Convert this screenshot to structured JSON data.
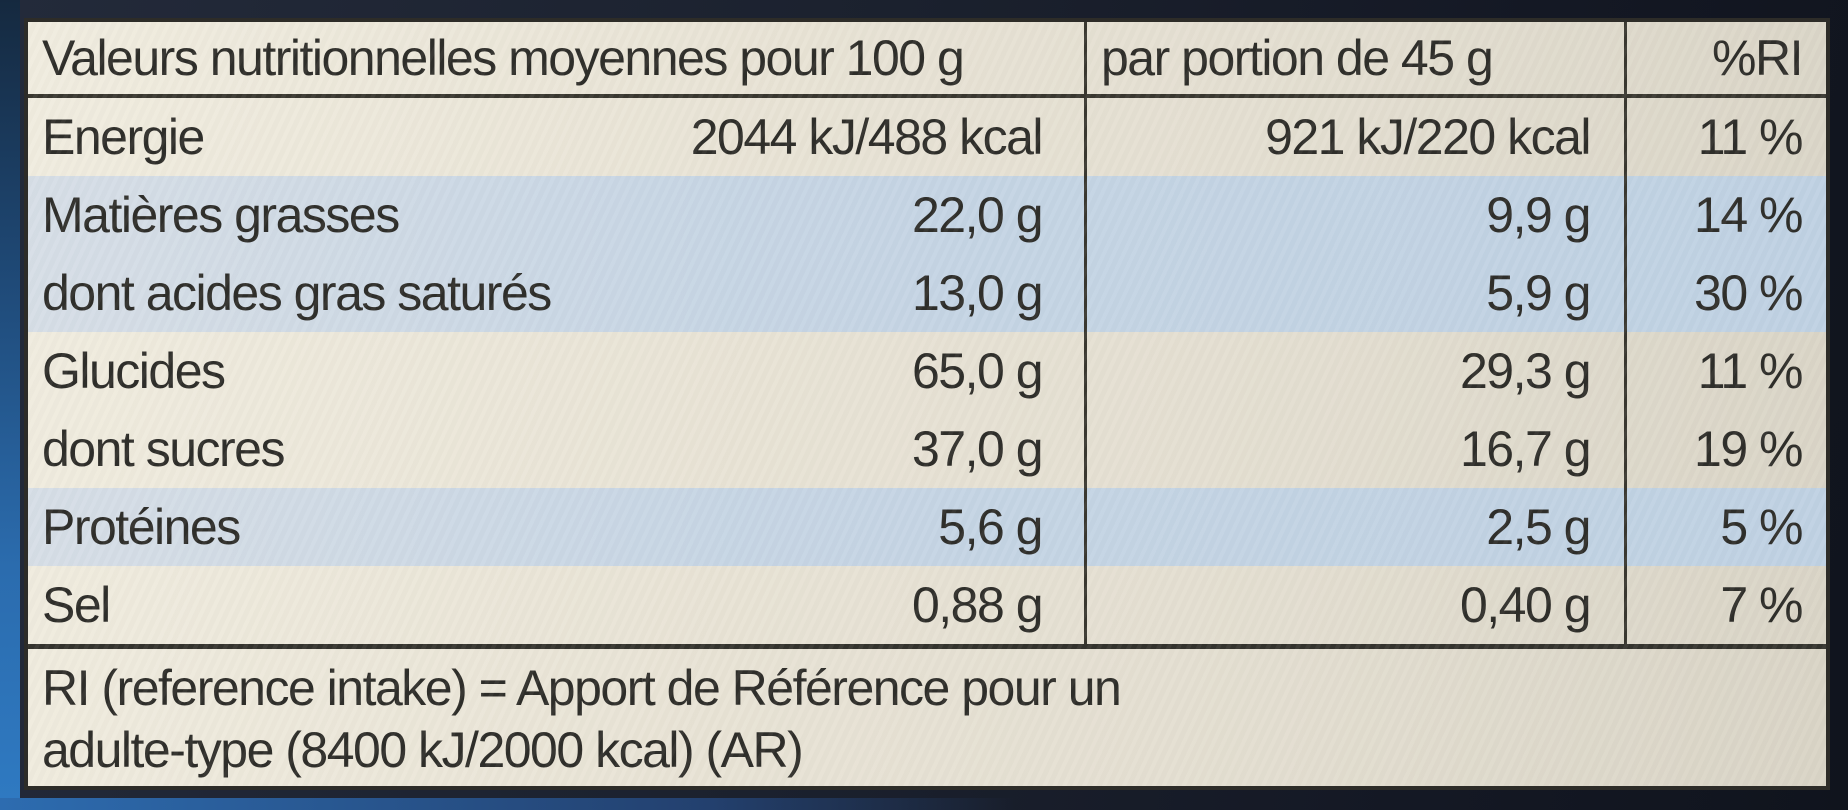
{
  "colors": {
    "card_cream": "#e8e3d5",
    "stripe_blue": "#c6d5e4",
    "text": "#2f2e2a",
    "line_dark": "#3a3830",
    "frame_navy": "#1b212e",
    "package_edge_blue": "#2f7ac2"
  },
  "table": {
    "header": {
      "col1": "Valeurs nutritionnelles moyennes pour 100 g",
      "col2": "par portion de 45 g",
      "col3": "%RI"
    },
    "rows": [
      {
        "label": "Energie",
        "per100": "2044 kJ/488 kcal",
        "portion": "921 kJ/220 kcal",
        "ri": "11 %",
        "band": "cream"
      },
      {
        "label": "Matières grasses",
        "per100": "22,0 g",
        "portion": "9,9 g",
        "ri": "14 %",
        "band": "blue"
      },
      {
        "label": "dont acides gras saturés",
        "per100": "13,0 g",
        "portion": "5,9 g",
        "ri": "30 %",
        "band": "blue"
      },
      {
        "label": "Glucides",
        "per100": "65,0 g",
        "portion": "29,3 g",
        "ri": "11 %",
        "band": "cream"
      },
      {
        "label": "dont sucres",
        "per100": "37,0 g",
        "portion": "16,7 g",
        "ri": "19 %",
        "band": "cream"
      },
      {
        "label": "Protéines",
        "per100": "5,6 g",
        "portion": "2,5 g",
        "ri": "5 %",
        "band": "blue"
      },
      {
        "label": "Sel",
        "per100": "0,88 g",
        "portion": "0,40 g",
        "ri": "7 %",
        "band": "cream"
      }
    ],
    "footnote_line1": "RI (reference intake) = Apport de Référence pour un",
    "footnote_line2": "adulte-type (8400 kJ/2000 kcal) (AR)"
  }
}
